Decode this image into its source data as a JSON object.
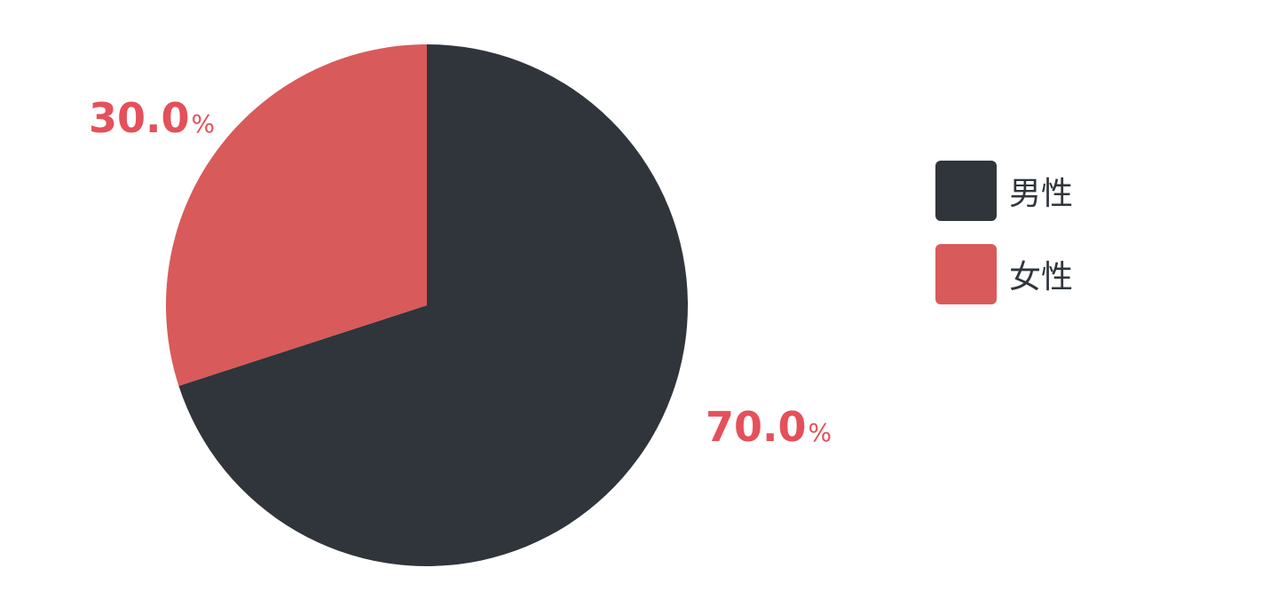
{
  "chart_data": {
    "type": "pie",
    "categories": [
      "男性",
      "女性"
    ],
    "values": [
      70.0,
      30.0
    ],
    "colors": [
      "#2f353b",
      "#d95a5a"
    ],
    "data_labels": [
      {
        "value": "70.0",
        "unit": "%"
      },
      {
        "value": "30.0",
        "unit": "%"
      }
    ],
    "label_color": "#e5505a",
    "start_angle": "top",
    "direction": "clockwise",
    "legend": {
      "placement": "right",
      "entries": [
        "男性",
        "女性"
      ]
    }
  }
}
